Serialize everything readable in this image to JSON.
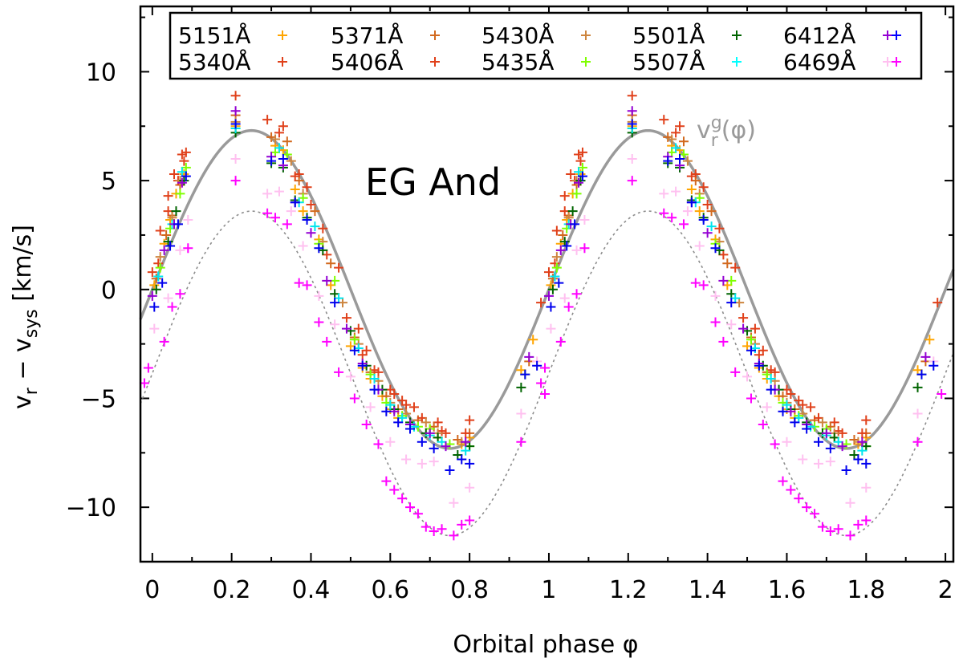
{
  "chart_data": {
    "type": "scatter",
    "title": "",
    "xlabel": "Orbital phase φ",
    "ylabel_main": "v",
    "ylabel_sub1": "r",
    "ylabel_mid": " − v",
    "ylabel_sub2": "sys",
    "ylabel_unit": " [km/s]",
    "xlim": [
      -0.03,
      2.02
    ],
    "ylim": [
      -12.5,
      13
    ],
    "x_ticks": [
      0,
      0.2,
      0.4,
      0.6,
      0.8,
      1,
      1.2,
      1.4,
      1.6,
      1.8,
      2
    ],
    "x_tick_labels": [
      "0",
      "0.2",
      "0.4",
      "0.6",
      "0.8",
      "1",
      "1.2",
      "1.4",
      "1.6",
      "1.8",
      "2"
    ],
    "y_ticks": [
      -10,
      -5,
      0,
      5,
      10
    ],
    "y_tick_labels": [
      "−10",
      "−5",
      "0",
      "5",
      "10"
    ],
    "annotation_main": "EG And",
    "curve_label_base": "v",
    "curve_label_sub": "r",
    "curve_label_sup": "g",
    "curve_label_tail": "(φ)",
    "curve_label_color": "#9a9a9a",
    "solid_curve": {
      "name": "vr^g(φ)",
      "amplitude": 7.3,
      "phase_of_max": 0.25,
      "color": "#9a9a9a"
    },
    "dotted_curve": {
      "amplitude": 7.45,
      "offset": -3.85,
      "phase_of_max": 0.25,
      "color": "#8c8c8c"
    },
    "legend": {
      "position": "top",
      "columns": 5,
      "entries": [
        {
          "label": "5151Å",
          "color": "#ffa500"
        },
        {
          "label": "5340Å",
          "color": "#e0401a"
        },
        {
          "label": "5371Å",
          "color": "#d2691e"
        },
        {
          "label": "5406Å",
          "color": "#e0401a"
        },
        {
          "label": "5430Å",
          "color": "#cd853f"
        },
        {
          "label": "5435Å",
          "color": "#7fff00"
        },
        {
          "label": "5501Å",
          "color": "#006400"
        },
        {
          "label": "5507Å",
          "color": "#00ffff"
        },
        {
          "label": "6412Å",
          "color": "#9400d3"
        },
        {
          "label": "6469Å",
          "color": "#ffc0f0"
        },
        {
          "label": "",
          "color": "#0000ff"
        },
        {
          "label": "",
          "color": "#ff00ff"
        }
      ]
    },
    "series": [
      {
        "name": "5151Å",
        "color": "#ffa500",
        "phases": [
          0.005,
          0.03,
          0.045,
          0.06,
          0.08,
          0.21,
          0.31,
          0.33,
          0.36,
          0.38,
          0.42,
          0.45,
          0.5,
          0.53,
          0.55,
          0.58,
          0.6,
          0.62,
          0.65,
          0.7,
          0.72,
          0.78,
          0.8,
          0.93,
          0.96
        ],
        "values": [
          0.2,
          2.1,
          3.2,
          4.4,
          5.3,
          7.5,
          6.6,
          6.4,
          4.6,
          3.6,
          2.3,
          0.2,
          -2.6,
          -3.6,
          -4.1,
          -4.9,
          -5.5,
          -5.9,
          -6.2,
          -6.4,
          -6.8,
          -7.1,
          -6.8,
          -3.7,
          -2.3
        ]
      },
      {
        "name": "5340Å",
        "color": "#e0401a",
        "phases": [
          0.0,
          0.02,
          0.04,
          0.055,
          0.075,
          0.085,
          0.21,
          0.29,
          0.33,
          0.37,
          0.39,
          0.43,
          0.47,
          0.52,
          0.54,
          0.57,
          0.6,
          0.63,
          0.66,
          0.72,
          0.74,
          0.8,
          0.98
        ],
        "values": [
          0.8,
          2.7,
          4.3,
          5.3,
          6.2,
          6.3,
          8.9,
          7.8,
          7.5,
          5.3,
          4.7,
          2.8,
          1.0,
          -1.8,
          -2.8,
          -3.8,
          -4.6,
          -5.1,
          -5.4,
          -6.1,
          -6.6,
          -6.0,
          -0.6
        ]
      },
      {
        "name": "5371Å",
        "color": "#d2691e",
        "phases": [
          0.01,
          0.035,
          0.05,
          0.07,
          0.21,
          0.3,
          0.34,
          0.37,
          0.41,
          0.45,
          0.51,
          0.55,
          0.59,
          0.62,
          0.67,
          0.71,
          0.77,
          0.8,
          0.95
        ],
        "values": [
          0.5,
          2.5,
          3.4,
          4.8,
          8.0,
          7.0,
          6.8,
          5.0,
          3.6,
          1.2,
          -2.2,
          -3.8,
          -4.9,
          -5.5,
          -6.0,
          -6.3,
          -6.9,
          -6.6,
          -3.3
        ]
      },
      {
        "name": "5406Å",
        "color": "#e0401a",
        "phases": [
          0.015,
          0.04,
          0.065,
          0.08,
          0.32,
          0.36,
          0.4,
          0.44,
          0.49,
          0.53,
          0.56,
          0.61,
          0.64,
          0.68,
          0.73,
          0.79
        ],
        "values": [
          1.2,
          3.6,
          5.0,
          5.9,
          7.2,
          5.2,
          3.9,
          1.6,
          -1.3,
          -3.0,
          -3.7,
          -4.8,
          -5.3,
          -5.9,
          -6.5,
          -6.6
        ]
      },
      {
        "name": "5430Å",
        "color": "#cd853f",
        "phases": [
          0.02,
          0.05,
          0.07,
          0.21,
          0.31,
          0.35,
          0.38,
          0.43,
          0.48,
          0.52,
          0.57,
          0.6,
          0.64,
          0.69,
          0.72,
          0.78
        ],
        "values": [
          1.5,
          3.3,
          5.0,
          7.7,
          6.9,
          5.9,
          4.4,
          2.2,
          -0.6,
          -2.5,
          -4.2,
          -5.2,
          -5.7,
          -6.1,
          -6.6,
          -7.0
        ]
      },
      {
        "name": "5435Å",
        "color": "#7fff00",
        "phases": [
          0.02,
          0.045,
          0.07,
          0.085,
          0.21,
          0.31,
          0.34,
          0.38,
          0.42,
          0.46,
          0.51,
          0.55,
          0.59,
          0.63,
          0.67,
          0.7,
          0.75,
          0.8,
          0.94
        ],
        "values": [
          1.0,
          2.8,
          4.4,
          5.6,
          7.4,
          6.3,
          6.2,
          4.2,
          2.1,
          0.4,
          -2.3,
          -3.9,
          -5.2,
          -5.8,
          -6.3,
          -6.4,
          -7.1,
          -7.2,
          -3.9
        ]
      },
      {
        "name": "5501Å",
        "color": "#006400",
        "phases": [
          0.01,
          0.04,
          0.06,
          0.08,
          0.21,
          0.3,
          0.33,
          0.36,
          0.39,
          0.43,
          0.46,
          0.5,
          0.54,
          0.58,
          0.61,
          0.65,
          0.69,
          0.72,
          0.77,
          0.8,
          0.93
        ],
        "values": [
          0.0,
          2.2,
          3.6,
          5.0,
          7.2,
          5.8,
          5.6,
          4.1,
          3.3,
          1.8,
          -0.2,
          -1.9,
          -3.5,
          -4.6,
          -5.5,
          -6.1,
          -6.6,
          -6.8,
          -7.6,
          -7.2,
          -4.5
        ]
      },
      {
        "name": "5507Å",
        "color": "#00e5ee",
        "phases": [
          0.015,
          0.05,
          0.075,
          0.21,
          0.32,
          0.37,
          0.41,
          0.47,
          0.52,
          0.56,
          0.6,
          0.63,
          0.66,
          0.7,
          0.73,
          0.79
        ],
        "values": [
          0.6,
          3.0,
          5.4,
          7.4,
          6.5,
          4.0,
          2.9,
          -0.4,
          -2.7,
          -4.1,
          -5.3,
          -5.9,
          -6.3,
          -6.7,
          -7.0,
          -7.4
        ]
      },
      {
        "name": "6412Å",
        "color": "#9400d3",
        "phases": [
          0.0,
          0.03,
          0.055,
          0.075,
          0.21,
          0.3,
          0.33,
          0.36,
          0.4,
          0.44,
          0.49,
          0.53,
          0.57,
          0.61,
          0.65,
          0.7,
          0.74,
          0.79,
          0.95
        ],
        "values": [
          -0.3,
          1.8,
          3.0,
          4.9,
          8.2,
          6.1,
          5.7,
          4.0,
          2.6,
          0.4,
          -1.8,
          -3.4,
          -4.6,
          -5.6,
          -6.2,
          -6.6,
          -7.2,
          -7.0,
          -3.1
        ]
      },
      {
        "name": "6469Å",
        "color": "#ffc0f0",
        "phases": [
          0.005,
          0.04,
          0.07,
          0.09,
          0.21,
          0.29,
          0.32,
          0.35,
          0.38,
          0.42,
          0.46,
          0.5,
          0.55,
          0.6,
          0.64,
          0.68,
          0.71,
          0.76,
          0.8,
          0.93,
          0.97
        ],
        "values": [
          -1.8,
          -0.4,
          1.8,
          3.2,
          6.0,
          4.4,
          4.5,
          3.6,
          2.0,
          -0.3,
          -1.6,
          -4.0,
          -5.4,
          -7.0,
          -7.8,
          -8.0,
          -7.9,
          -9.8,
          -9.1,
          -5.7,
          -3.3
        ]
      },
      {
        "name": "blue",
        "color": "#0000ee",
        "phases": [
          0.005,
          0.025,
          0.045,
          0.065,
          0.085,
          0.21,
          0.3,
          0.33,
          0.36,
          0.39,
          0.42,
          0.46,
          0.51,
          0.53,
          0.56,
          0.59,
          0.62,
          0.65,
          0.68,
          0.71,
          0.75,
          0.78,
          0.8,
          0.94,
          0.97
        ],
        "values": [
          -0.8,
          0.3,
          2.0,
          3.0,
          5.2,
          7.6,
          5.9,
          6.0,
          4.0,
          3.2,
          1.9,
          -0.6,
          -2.8,
          -3.5,
          -4.6,
          -5.6,
          -6.1,
          -6.4,
          -7.0,
          -7.3,
          -8.3,
          -7.8,
          -8.0,
          -3.9,
          -3.5
        ]
      },
      {
        "name": "magenta",
        "color": "#ff00ff",
        "phases": [
          -0.02,
          -0.01,
          0.03,
          0.05,
          0.07,
          0.09,
          0.21,
          0.29,
          0.31,
          0.34,
          0.37,
          0.39,
          0.42,
          0.44,
          0.47,
          0.51,
          0.54,
          0.57,
          0.59,
          0.61,
          0.63,
          0.65,
          0.67,
          0.69,
          0.71,
          0.73,
          0.76,
          0.78,
          0.8,
          0.93,
          0.99
        ],
        "values": [
          -4.3,
          -3.6,
          -2.4,
          -0.8,
          -0.2,
          1.9,
          5.0,
          3.5,
          3.3,
          3.0,
          0.3,
          0.2,
          -1.5,
          -2.4,
          -3.8,
          -5.0,
          -6.2,
          -7.1,
          -8.8,
          -9.2,
          -9.6,
          -10.0,
          -10.3,
          -10.9,
          -11.1,
          -11.0,
          -11.3,
          -10.8,
          -10.6,
          -7.0,
          -4.8
        ]
      }
    ]
  }
}
